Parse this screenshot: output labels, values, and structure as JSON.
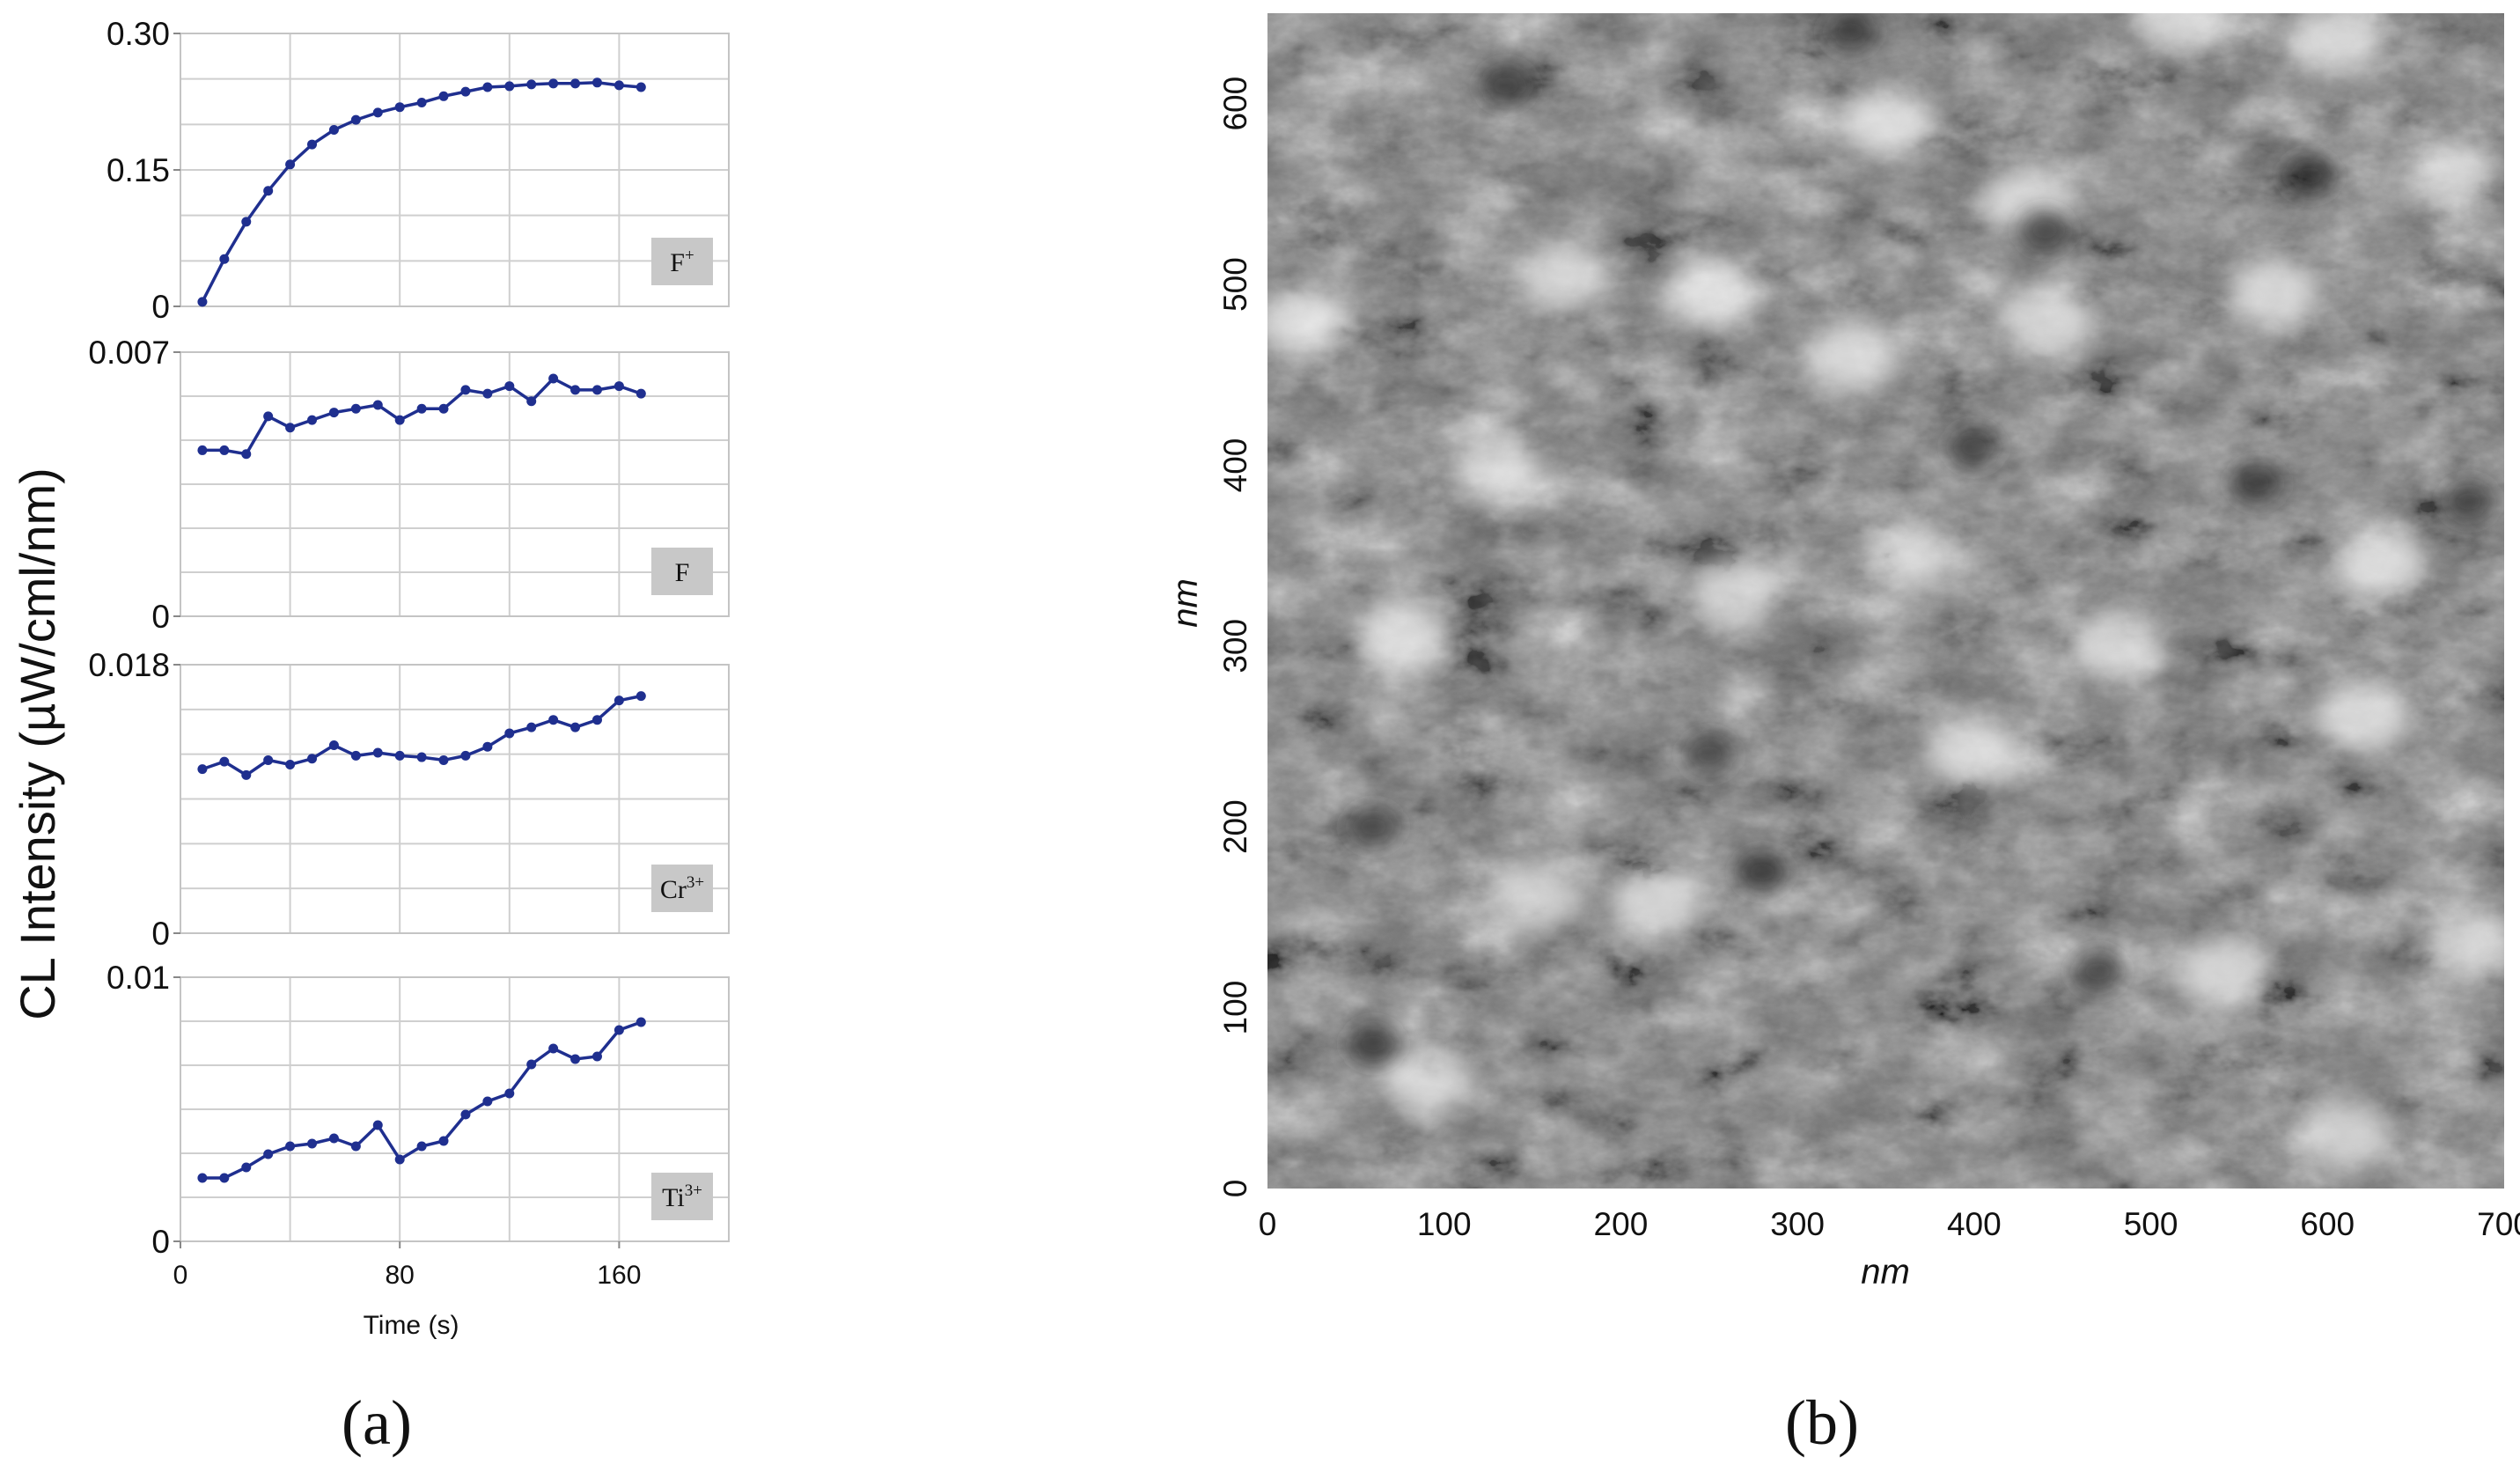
{
  "chart_data": [
    {
      "type": "line",
      "panel": "a",
      "ylabel": "CL  Intensity  (µW/cml/nm)",
      "xlabel": "Time (s)",
      "xlim": [
        0,
        200
      ],
      "xticks": [
        "0",
        "80",
        "160"
      ],
      "xtick_values": [
        0,
        80,
        160
      ],
      "panel_label": "(a)",
      "subplots": [
        {
          "label_main": "F",
          "label_sup": "+",
          "ylim": [
            0,
            0.3
          ],
          "yticks": [
            "0",
            "0.15",
            "0.30"
          ],
          "ytick_values": [
            0,
            0.15,
            0.3
          ],
          "x": [
            8,
            16,
            24,
            32,
            40,
            48,
            56,
            64,
            72,
            80,
            88,
            96,
            104,
            112,
            120,
            128,
            136,
            144,
            152,
            160,
            168
          ],
          "values": [
            0.005,
            0.052,
            0.093,
            0.127,
            0.156,
            0.178,
            0.194,
            0.205,
            0.213,
            0.219,
            0.224,
            0.231,
            0.236,
            0.241,
            0.242,
            0.244,
            0.245,
            0.245,
            0.246,
            0.243,
            0.241
          ]
        },
        {
          "label_main": "F",
          "label_sup": "",
          "ylim": [
            0,
            0.007
          ],
          "yticks": [
            "0",
            "0.007"
          ],
          "ytick_values": [
            0,
            0.007
          ],
          "x": [
            8,
            16,
            24,
            32,
            40,
            48,
            56,
            64,
            72,
            80,
            88,
            96,
            104,
            112,
            120,
            128,
            136,
            144,
            152,
            160,
            168
          ],
          "values": [
            0.0044,
            0.0044,
            0.0043,
            0.0053,
            0.005,
            0.0052,
            0.0054,
            0.0055,
            0.0056,
            0.0052,
            0.0055,
            0.0055,
            0.006,
            0.0059,
            0.0061,
            0.0057,
            0.0063,
            0.006,
            0.006,
            0.0061,
            0.0059
          ]
        },
        {
          "label_main": "Cr",
          "label_sup": "3+",
          "ylim": [
            0,
            0.018
          ],
          "yticks": [
            "0",
            "0.018"
          ],
          "ytick_values": [
            0,
            0.018
          ],
          "x": [
            8,
            16,
            24,
            32,
            40,
            48,
            56,
            64,
            72,
            80,
            88,
            96,
            104,
            112,
            120,
            128,
            136,
            144,
            152,
            160,
            168
          ],
          "values": [
            0.011,
            0.0115,
            0.0106,
            0.0116,
            0.0113,
            0.0117,
            0.0126,
            0.0119,
            0.0121,
            0.0119,
            0.0118,
            0.0116,
            0.0119,
            0.0125,
            0.0134,
            0.0138,
            0.0143,
            0.0138,
            0.0143,
            0.0156,
            0.0159
          ]
        },
        {
          "label_main": "Ti",
          "label_sup": "3+",
          "ylim": [
            0,
            0.01
          ],
          "yticks": [
            "0",
            "0.01"
          ],
          "ytick_values": [
            0,
            0.01
          ],
          "x": [
            8,
            16,
            24,
            32,
            40,
            48,
            56,
            64,
            72,
            80,
            88,
            96,
            104,
            112,
            120,
            128,
            136,
            144,
            152,
            160,
            168
          ],
          "values": [
            0.0024,
            0.0024,
            0.0028,
            0.0033,
            0.0036,
            0.0037,
            0.0039,
            0.0036,
            0.0044,
            0.0031,
            0.0036,
            0.0038,
            0.0048,
            0.0053,
            0.0056,
            0.0067,
            0.0073,
            0.0069,
            0.007,
            0.008,
            0.0083
          ]
        }
      ]
    },
    {
      "type": "heatmap",
      "panel": "b",
      "description": "AFM topography map (grayscale)",
      "xlabel": "nm",
      "ylabel": "nm",
      "xlim": [
        0,
        700
      ],
      "ylim": [
        0,
        650
      ],
      "xticks": [
        "0",
        "100",
        "200",
        "300",
        "400",
        "500",
        "600",
        "700"
      ],
      "xtick_values": [
        0,
        100,
        200,
        300,
        400,
        500,
        600,
        700
      ],
      "yticks": [
        "0",
        "100",
        "200",
        "300",
        "400",
        "500",
        "600"
      ],
      "ytick_values": [
        0,
        100,
        200,
        300,
        400,
        500,
        600
      ],
      "panel_label": "(b)",
      "colors": {
        "background": "#6e6e6e",
        "bright": "#f2f2f2",
        "dark": "#202020"
      },
      "bright_spots_nm": [
        [
          220,
          160
        ],
        [
          150,
          160
        ],
        [
          265,
          330
        ],
        [
          75,
          305
        ],
        [
          360,
          350
        ],
        [
          130,
          400
        ],
        [
          630,
          345
        ],
        [
          430,
          545
        ],
        [
          440,
          480
        ],
        [
          570,
          495
        ],
        [
          605,
          635
        ],
        [
          250,
          495
        ],
        [
          480,
          300
        ],
        [
          90,
          60
        ],
        [
          620,
          260
        ],
        [
          400,
          240
        ],
        [
          610,
          30
        ],
        [
          515,
          650
        ],
        [
          165,
          505
        ],
        [
          670,
          560
        ],
        [
          330,
          460
        ],
        [
          540,
          120
        ],
        [
          350,
          590
        ],
        [
          20,
          480
        ],
        [
          680,
          135
        ]
      ],
      "dark_spots_nm": [
        [
          280,
          175
        ],
        [
          330,
          640
        ],
        [
          440,
          530
        ],
        [
          590,
          560
        ],
        [
          250,
          240
        ],
        [
          560,
          390
        ],
        [
          60,
          80
        ],
        [
          400,
          410
        ],
        [
          135,
          610
        ],
        [
          680,
          380
        ],
        [
          470,
          120
        ],
        [
          60,
          200
        ]
      ]
    }
  ]
}
